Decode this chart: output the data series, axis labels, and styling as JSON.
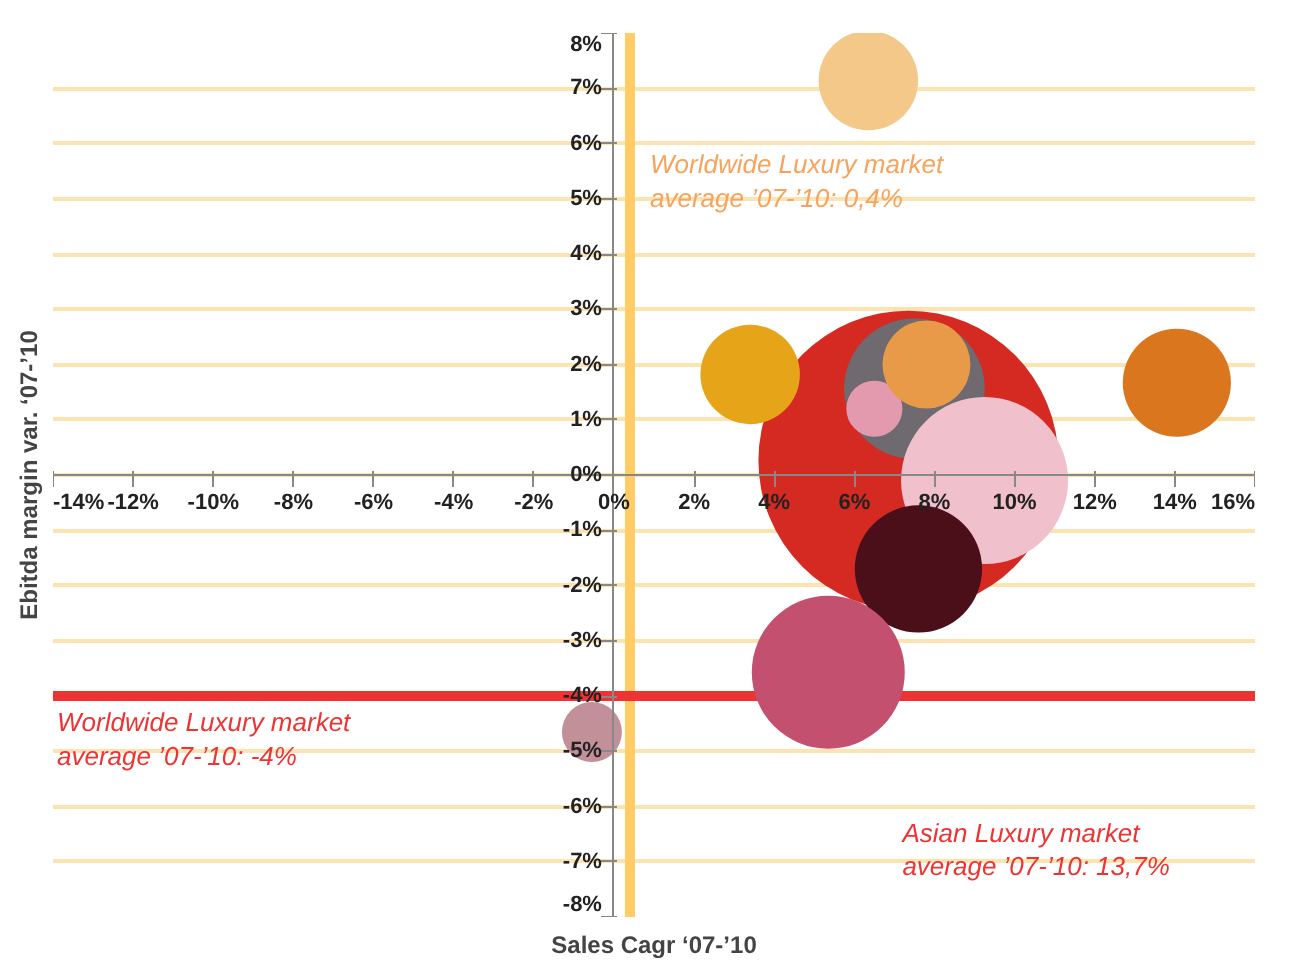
{
  "chart_data": {
    "type": "bubble",
    "xlabel": "Sales Cagr ‘07-’10",
    "ylabel": "Ebitda margin var. ‘07-’10",
    "xlim": [
      -14,
      16
    ],
    "ylim": [
      -8,
      8
    ],
    "xticks": [
      {
        "value": -14,
        "label": "-14%"
      },
      {
        "value": -12,
        "label": "-12%"
      },
      {
        "value": -10,
        "label": "-10%"
      },
      {
        "value": -8,
        "label": "-8%"
      },
      {
        "value": -6,
        "label": "-6%"
      },
      {
        "value": -4,
        "label": "-4%"
      },
      {
        "value": -2,
        "label": "-2%"
      },
      {
        "value": 0,
        "label": "0%"
      },
      {
        "value": 2,
        "label": "2%"
      },
      {
        "value": 4,
        "label": "4%"
      },
      {
        "value": 6,
        "label": "6%"
      },
      {
        "value": 8,
        "label": "8%"
      },
      {
        "value": 10,
        "label": "10%"
      },
      {
        "value": 12,
        "label": "12%"
      },
      {
        "value": 14,
        "label": "14%"
      },
      {
        "value": 16,
        "label": "16%"
      }
    ],
    "yticks": [
      {
        "value": -8,
        "label": "-8%"
      },
      {
        "value": -7,
        "label": "-7%"
      },
      {
        "value": -6,
        "label": "-6%"
      },
      {
        "value": -5,
        "label": "-5%"
      },
      {
        "value": -4,
        "label": "-4%"
      },
      {
        "value": -3,
        "label": "-3%"
      },
      {
        "value": -2,
        "label": "-2%"
      },
      {
        "value": -1,
        "label": "-1%"
      },
      {
        "value": 0,
        "label": "0%"
      },
      {
        "value": 1,
        "label": "1%"
      },
      {
        "value": 2,
        "label": "2%"
      },
      {
        "value": 3,
        "label": "3%"
      },
      {
        "value": 4,
        "label": "4%"
      },
      {
        "value": 5,
        "label": "5%"
      },
      {
        "value": 6,
        "label": "6%"
      },
      {
        "value": 7,
        "label": "7%"
      },
      {
        "value": 8,
        "label": "8%"
      }
    ],
    "grid": "y",
    "x": [
      7.35,
      7.5,
      9.25,
      7.6,
      6.5,
      7.8,
      6.35,
      3.4,
      14.05,
      5.35,
      -0.55
    ],
    "values": [
      0.26,
      1.56,
      -0.1,
      -1.7,
      1.2,
      2.0,
      7.14,
      1.82,
      1.67,
      -3.57,
      -4.65
    ],
    "sizes": [
      1,
      0.22,
      0.31,
      0.18,
      0.035,
      0.086,
      0.11,
      0.11,
      0.13,
      0.26,
      0.04
    ],
    "colors": [
      "#d42a22",
      "#6e6a70",
      "#f0c0cc",
      "#4a0f18",
      "#e39aae",
      "#e89a48",
      "#f3c888",
      "#e6a419",
      "#d9761e",
      "#c2506e",
      "#c29098"
    ],
    "ref_lines": [
      {
        "axis": "x",
        "value": 0.4,
        "label": "Worldwide Luxury market\naverage ’07-’10: 0,4%",
        "color": "#ffcc66"
      },
      {
        "axis": "y",
        "value": -4,
        "label": "Worldwide Luxury market\naverage ’07-’10: -4%",
        "color": "#ee3333"
      }
    ],
    "annotations": [
      "Asian Luxury market\naverage ’07-’10: 13,7%"
    ]
  }
}
